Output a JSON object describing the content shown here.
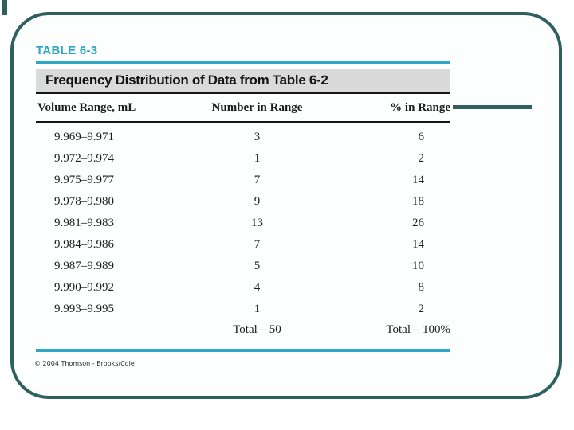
{
  "slide": {
    "table_label": "TABLE 6-3",
    "table_title": "Frequency Distribution of Data from Table 6-2",
    "copyright": "© 2004 Thomson - Brooks/Cole",
    "colors": {
      "accent_cyan": "#2EA6C4",
      "frame_teal": "#2D605E",
      "band_gray": "#DADADA"
    }
  },
  "chart_data": {
    "type": "table",
    "title": "Frequency Distribution of Data from Table 6-2",
    "columns": [
      "Volume Range, mL",
      "Number in Range",
      "% in Range"
    ],
    "rows": [
      [
        "9.969–9.971",
        "3",
        "6"
      ],
      [
        "9.972–9.974",
        "1",
        "2"
      ],
      [
        "9.975–9.977",
        "7",
        "14"
      ],
      [
        "9.978–9.980",
        "9",
        "18"
      ],
      [
        "9.981–9.983",
        "13",
        "26"
      ],
      [
        "9.984–9.986",
        "7",
        "14"
      ],
      [
        "9.987–9.989",
        "5",
        "10"
      ],
      [
        "9.990–9.992",
        "4",
        "8"
      ],
      [
        "9.993–9.995",
        "1",
        "2"
      ]
    ],
    "totals": {
      "number": "Total – 50",
      "percent": "Total – 100%"
    }
  }
}
